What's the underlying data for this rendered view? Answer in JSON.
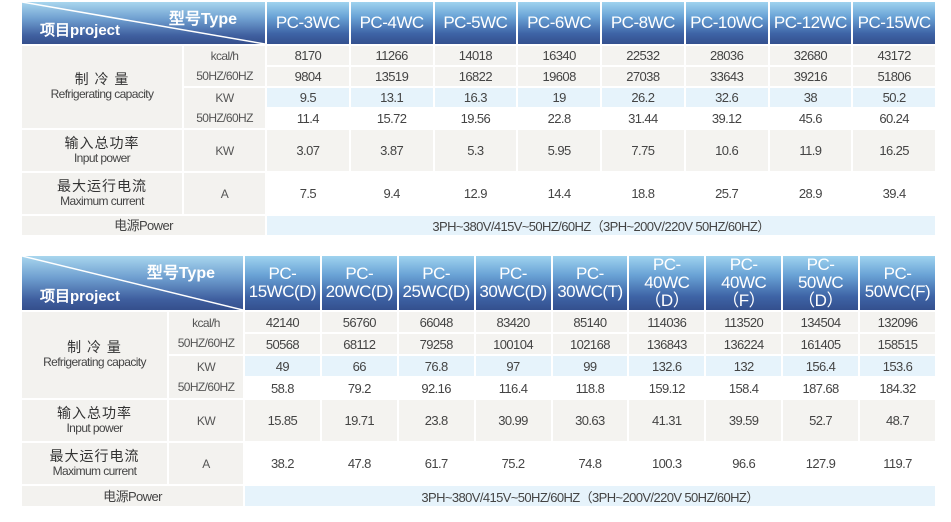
{
  "labels": {
    "type": "型号Type",
    "project": "项目project",
    "capacity_cn": "制 冷 量",
    "capacity_en": "Refrigerating capacity",
    "unit_kcal": "kcal/h",
    "unit_hz": "50HZ/60HZ",
    "unit_kw": "KW",
    "input_cn": "输入总功率",
    "input_en": "Input power",
    "current_cn": "最大运行电流",
    "current_en": "Maximum current",
    "unit_a": "A",
    "power": "电源Power"
  },
  "tables": [
    {
      "models": [
        "PC-3WC",
        "PC-4WC",
        "PC-5WC",
        "PC-6WC",
        "PC-8WC",
        "PC-10WC",
        "PC-12WC",
        "PC-15WC"
      ],
      "kcal_50": [
        "8170",
        "11266",
        "14018",
        "16340",
        "22532",
        "28036",
        "32680",
        "43172"
      ],
      "kcal_60": [
        "9804",
        "13519",
        "16822",
        "19608",
        "27038",
        "33643",
        "39216",
        "51806"
      ],
      "kw_50": [
        "9.5",
        "13.1",
        "16.3",
        "19",
        "26.2",
        "32.6",
        "38",
        "50.2"
      ],
      "kw_60": [
        "11.4",
        "15.72",
        "19.56",
        "22.8",
        "31.44",
        "39.12",
        "45.6",
        "60.24"
      ],
      "input": [
        "3.07",
        "3.87",
        "5.3",
        "5.95",
        "7.75",
        "10.6",
        "11.9",
        "16.25"
      ],
      "current": [
        "7.5",
        "9.4",
        "12.9",
        "14.4",
        "18.8",
        "25.7",
        "28.9",
        "39.4"
      ],
      "power": "3PH~380V/415V~50HZ/60HZ（3PH~200V/220V 50HZ/60HZ）"
    },
    {
      "models": [
        "PC-\n15WC(D)",
        "PC-\n20WC(D)",
        "PC-\n25WC(D)",
        "PC-\n30WC(D)",
        "PC-\n30WC(T)",
        "PC-\n40WC（D）",
        "PC-\n40WC（F）",
        "PC-\n50WC（D）",
        "PC-\n50WC(F)"
      ],
      "kcal_50": [
        "42140",
        "56760",
        "66048",
        "83420",
        "85140",
        "114036",
        "113520",
        "134504",
        "132096"
      ],
      "kcal_60": [
        "50568",
        "68112",
        "79258",
        "100104",
        "102168",
        "136843",
        "136224",
        "161405",
        "158515"
      ],
      "kw_50": [
        "49",
        "66",
        "76.8",
        "97",
        "99",
        "132.6",
        "132",
        "156.4",
        "153.6"
      ],
      "kw_60": [
        "58.8",
        "79.2",
        "92.16",
        "116.4",
        "118.8",
        "159.12",
        "158.4",
        "187.68",
        "184.32"
      ],
      "input": [
        "15.85",
        "19.71",
        "23.8",
        "30.99",
        "30.63",
        "41.31",
        "39.59",
        "52.7",
        "48.7"
      ],
      "current": [
        "38.2",
        "47.8",
        "61.7",
        "75.2",
        "74.8",
        "100.3",
        "96.6",
        "127.9",
        "119.7"
      ],
      "power": "3PH~380V/415V~50HZ/60HZ（3PH~200V/220V 50HZ/60HZ）"
    }
  ],
  "colors": {
    "header_dark": "#34508e",
    "header_light": "#9fd3ef",
    "row_blue": "#e6f3fb",
    "row_gray": "#f3f2ef"
  }
}
